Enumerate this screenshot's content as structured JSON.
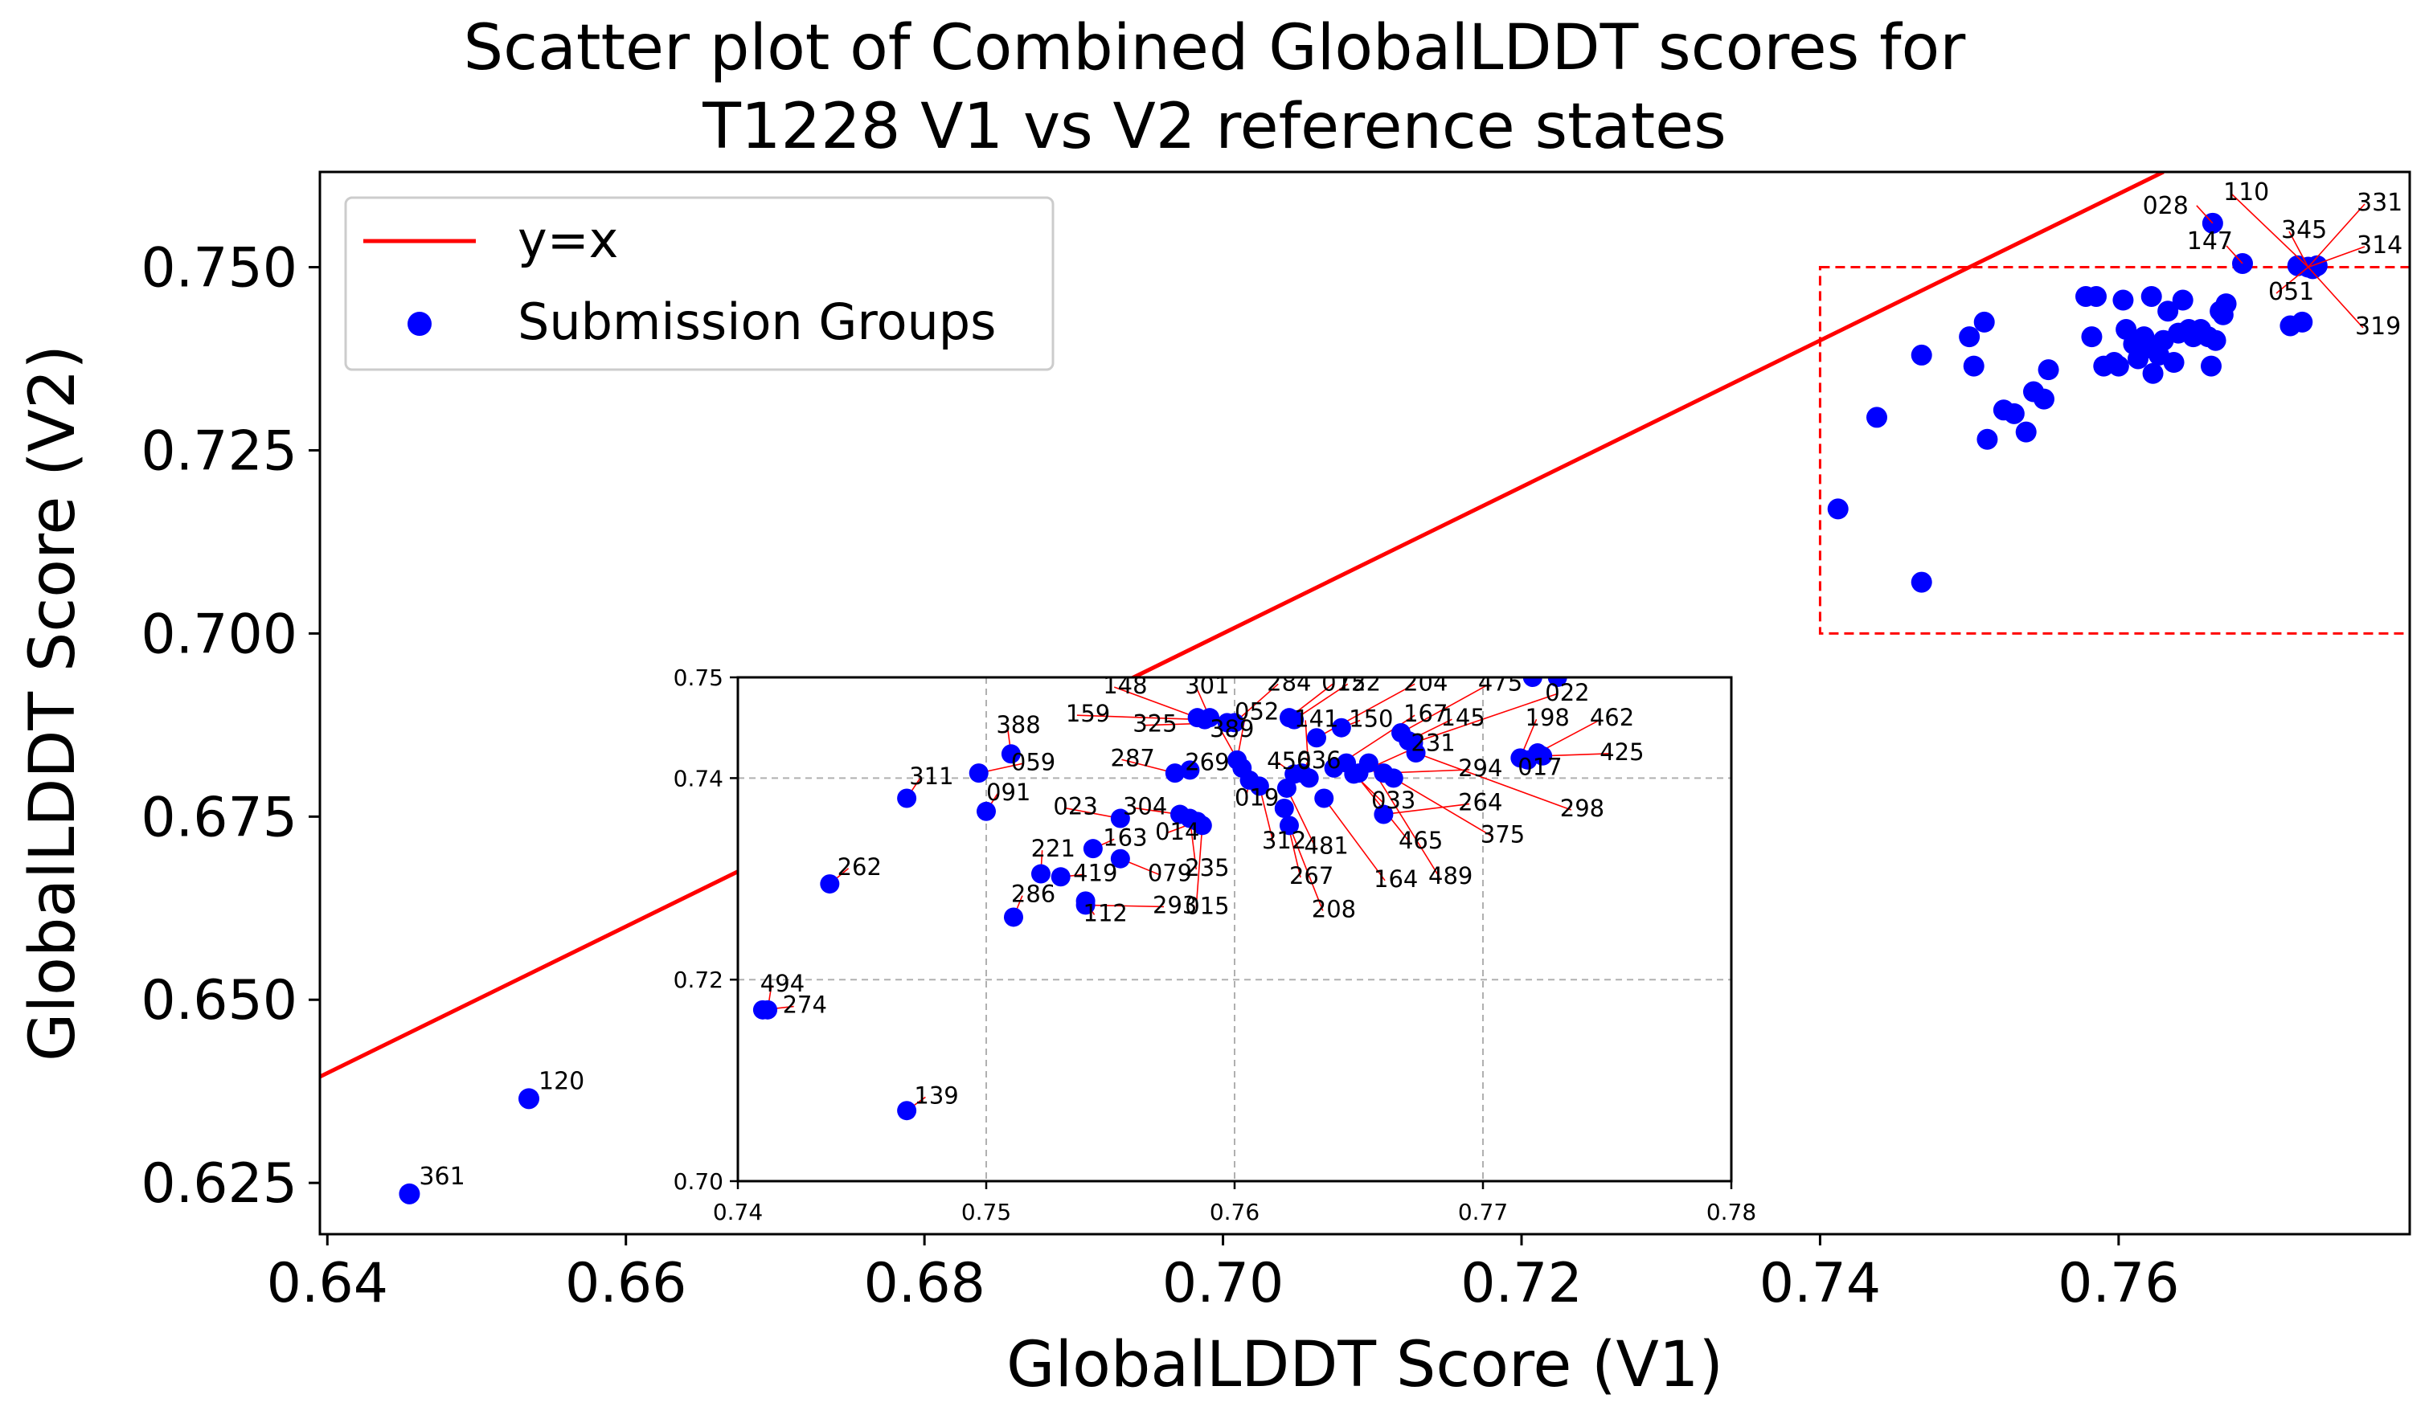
{
  "chart_data": {
    "type": "scatter",
    "title_lines": [
      "Scatter plot of Combined GlobalLDDT scores for",
      "T1228 V1 vs V2 reference states"
    ],
    "xlabel": "GlobalLDDT Score (V1)",
    "ylabel": "GlobalLDDT Score (V2)",
    "xlim": [
      0.6395,
      0.7795
    ],
    "ylim": [
      0.618,
      0.763
    ],
    "xticks": [
      "0.64",
      "0.66",
      "0.68",
      "0.70",
      "0.72",
      "0.74",
      "0.76"
    ],
    "yticks": [
      "0.625",
      "0.650",
      "0.675",
      "0.700",
      "0.725",
      "0.750"
    ],
    "grid": false,
    "legend": {
      "position": "top-left",
      "entries": [
        "y=x",
        "Submission Groups"
      ]
    },
    "colors": {
      "line": "#ff0000",
      "points": "#0000ff",
      "zoom_box": "#ff0000",
      "annotation_arrows": "#ff0000"
    },
    "reference_line": "y=x",
    "zoom_box": {
      "x": [
        0.74,
        0.7795
      ],
      "y": [
        0.7,
        0.75
      ]
    },
    "main_points": [
      {
        "x": 0.6455,
        "y": 0.6235,
        "label": "361"
      },
      {
        "x": 0.6535,
        "y": 0.6365,
        "label": "120"
      },
      {
        "x": 0.7412,
        "y": 0.717
      },
      {
        "x": 0.7438,
        "y": 0.7295
      },
      {
        "x": 0.7468,
        "y": 0.738
      },
      {
        "x": 0.7468,
        "y": 0.707
      },
      {
        "x": 0.75,
        "y": 0.7405
      },
      {
        "x": 0.7503,
        "y": 0.7365
      },
      {
        "x": 0.751,
        "y": 0.7425
      },
      {
        "x": 0.7512,
        "y": 0.7265
      },
      {
        "x": 0.7523,
        "y": 0.7305
      },
      {
        "x": 0.753,
        "y": 0.73
      },
      {
        "x": 0.7538,
        "y": 0.7275
      },
      {
        "x": 0.7543,
        "y": 0.733
      },
      {
        "x": 0.755,
        "y": 0.732
      },
      {
        "x": 0.7553,
        "y": 0.736
      },
      {
        "x": 0.7578,
        "y": 0.746
      },
      {
        "x": 0.7582,
        "y": 0.7405
      },
      {
        "x": 0.7585,
        "y": 0.746
      },
      {
        "x": 0.759,
        "y": 0.7365
      },
      {
        "x": 0.7597,
        "y": 0.737
      },
      {
        "x": 0.76,
        "y": 0.7365
      },
      {
        "x": 0.7603,
        "y": 0.7455
      },
      {
        "x": 0.7605,
        "y": 0.7415
      },
      {
        "x": 0.761,
        "y": 0.7395
      },
      {
        "x": 0.7613,
        "y": 0.7375
      },
      {
        "x": 0.7617,
        "y": 0.7405
      },
      {
        "x": 0.762,
        "y": 0.739
      },
      {
        "x": 0.7622,
        "y": 0.746
      },
      {
        "x": 0.7623,
        "y": 0.7355
      },
      {
        "x": 0.7627,
        "y": 0.738
      },
      {
        "x": 0.763,
        "y": 0.74
      },
      {
        "x": 0.7633,
        "y": 0.744
      },
      {
        "x": 0.7637,
        "y": 0.737
      },
      {
        "x": 0.764,
        "y": 0.741
      },
      {
        "x": 0.7643,
        "y": 0.7455
      },
      {
        "x": 0.7647,
        "y": 0.7415
      },
      {
        "x": 0.765,
        "y": 0.7405
      },
      {
        "x": 0.7655,
        "y": 0.7415
      },
      {
        "x": 0.766,
        "y": 0.7405
      },
      {
        "x": 0.7662,
        "y": 0.7365
      },
      {
        "x": 0.7665,
        "y": 0.74
      },
      {
        "x": 0.7668,
        "y": 0.744
      },
      {
        "x": 0.767,
        "y": 0.7435
      },
      {
        "x": 0.7672,
        "y": 0.745
      },
      {
        "x": 0.7663,
        "y": 0.756,
        "label": "028"
      },
      {
        "x": 0.7683,
        "y": 0.7505,
        "label": "147"
      },
      {
        "x": 0.7715,
        "y": 0.742
      },
      {
        "x": 0.7723,
        "y": 0.7425
      }
    ],
    "main_cluster_labels": [
      "110",
      "331",
      "345",
      "314",
      "051",
      "319"
    ],
    "inset": {
      "xlim": [
        0.74,
        0.78
      ],
      "ylim": [
        0.7,
        0.75
      ],
      "xticks": [
        "0.74",
        "0.75",
        "0.76",
        "0.77",
        "0.78"
      ],
      "yticks": [
        "0.70",
        "0.72",
        "0.74",
        "0.75"
      ],
      "grid": true,
      "points": [
        {
          "x": 0.7412,
          "y": 0.717,
          "label": "494",
          "lx": 0.7409,
          "ly": 0.7188
        },
        {
          "x": 0.741,
          "y": 0.717,
          "label": "274",
          "lx": 0.7418,
          "ly": 0.7167
        },
        {
          "x": 0.7468,
          "y": 0.707,
          "label": "139",
          "lx": 0.7471,
          "ly": 0.7077
        },
        {
          "x": 0.7437,
          "y": 0.7295,
          "label": "262",
          "lx": 0.744,
          "ly": 0.7304
        },
        {
          "x": 0.7468,
          "y": 0.738,
          "label": "311",
          "lx": 0.7469,
          "ly": 0.7394
        },
        {
          "x": 0.7497,
          "y": 0.7405,
          "label": "059",
          "lx": 0.751,
          "ly": 0.7408
        },
        {
          "x": 0.75,
          "y": 0.7367,
          "label": "091",
          "lx": 0.75,
          "ly": 0.7378
        },
        {
          "x": 0.751,
          "y": 0.7424,
          "label": "388",
          "lx": 0.7504,
          "ly": 0.7445
        },
        {
          "x": 0.7511,
          "y": 0.7262,
          "label": "286",
          "lx": 0.751,
          "ly": 0.7277
        },
        {
          "x": 0.7522,
          "y": 0.7305,
          "label": "221",
          "lx": 0.7518,
          "ly": 0.7322
        },
        {
          "x": 0.753,
          "y": 0.7302,
          "label": "419",
          "lx": 0.7535,
          "ly": 0.7298
        },
        {
          "x": 0.754,
          "y": 0.7278,
          "label": "112",
          "lx": 0.7539,
          "ly": 0.7258
        },
        {
          "x": 0.754,
          "y": 0.7274,
          "label": "293",
          "lx": 0.7567,
          "ly": 0.7266
        },
        {
          "x": 0.7543,
          "y": 0.733,
          "label": "163",
          "lx": 0.7547,
          "ly": 0.7333
        },
        {
          "x": 0.7554,
          "y": 0.732,
          "label": "079",
          "lx": 0.7565,
          "ly": 0.7298
        },
        {
          "x": 0.7554,
          "y": 0.736,
          "label": "023",
          "lx": 0.7527,
          "ly": 0.7364
        },
        {
          "x": 0.7578,
          "y": 0.7364,
          "label": "304",
          "lx": 0.7555,
          "ly": 0.7364
        },
        {
          "x": 0.7585,
          "y": 0.7357,
          "label": "014",
          "lx": 0.7568,
          "ly": 0.7339
        },
        {
          "x": 0.7582,
          "y": 0.736,
          "label": "235",
          "lx": 0.758,
          "ly": 0.7303
        },
        {
          "x": 0.7587,
          "y": 0.7353,
          "label": "015",
          "lx": 0.758,
          "ly": 0.7265
        },
        {
          "x": 0.7576,
          "y": 0.7405,
          "label": "287",
          "lx": 0.755,
          "ly": 0.7412
        },
        {
          "x": 0.7582,
          "y": 0.7408,
          "label": "269",
          "lx": 0.758,
          "ly": 0.7408
        },
        {
          "x": 0.7585,
          "y": 0.746,
          "label": "148",
          "lx": 0.7547,
          "ly": 0.7484
        },
        {
          "x": 0.759,
          "y": 0.746,
          "label": "301",
          "lx": 0.758,
          "ly": 0.7484
        },
        {
          "x": 0.7588,
          "y": 0.7458,
          "label": "159",
          "lx": 0.7532,
          "ly": 0.7456
        },
        {
          "x": 0.7597,
          "y": 0.7455,
          "label": "325",
          "lx": 0.7559,
          "ly": 0.7446
        },
        {
          "x": 0.76,
          "y": 0.7455,
          "label": "284",
          "lx": 0.7613,
          "ly": 0.7487
        },
        {
          "x": 0.7601,
          "y": 0.7418,
          "label": "052",
          "lx": 0.76,
          "ly": 0.7458
        },
        {
          "x": 0.7603,
          "y": 0.741,
          "label": "389",
          "lx": 0.759,
          "ly": 0.7441
        },
        {
          "x": 0.7606,
          "y": 0.7398,
          "label": "019",
          "lx": 0.76,
          "ly": 0.7373
        },
        {
          "x": 0.761,
          "y": 0.7392,
          "label": "312",
          "lx": 0.7611,
          "ly": 0.733
        },
        {
          "x": 0.762,
          "y": 0.737,
          "label": "267",
          "lx": 0.7622,
          "ly": 0.7295
        },
        {
          "x": 0.7621,
          "y": 0.739,
          "label": "481",
          "lx": 0.7628,
          "ly": 0.7325
        },
        {
          "x": 0.7622,
          "y": 0.7353,
          "label": "208",
          "lx": 0.7631,
          "ly": 0.7262
        },
        {
          "x": 0.7622,
          "y": 0.746,
          "label": "075",
          "lx": 0.7635,
          "ly": 0.7487
        },
        {
          "x": 0.7624,
          "y": 0.7458,
          "label": "122",
          "lx": 0.7641,
          "ly": 0.7487
        },
        {
          "x": 0.7624,
          "y": 0.7404,
          "label": "456",
          "lx": 0.7613,
          "ly": 0.7409
        },
        {
          "x": 0.7627,
          "y": 0.7405,
          "label": "036",
          "lx": 0.7625,
          "ly": 0.741
        },
        {
          "x": 0.763,
          "y": 0.74,
          "label": "141",
          "lx": 0.7624,
          "ly": 0.7451
        },
        {
          "x": 0.7633,
          "y": 0.744,
          "label": "204",
          "lx": 0.7668,
          "ly": 0.7487
        },
        {
          "x": 0.7636,
          "y": 0.738,
          "label": "164",
          "lx": 0.7656,
          "ly": 0.7292
        },
        {
          "x": 0.764,
          "y": 0.741,
          "label": "167",
          "lx": 0.7668,
          "ly": 0.7456
        },
        {
          "x": 0.7643,
          "y": 0.745,
          "label": "150",
          "lx": 0.7646,
          "ly": 0.7451
        },
        {
          "x": 0.7645,
          "y": 0.7415,
          "label": "465",
          "lx": 0.7666,
          "ly": 0.733
        },
        {
          "x": 0.7648,
          "y": 0.7404,
          "label": "033",
          "lx": 0.7655,
          "ly": 0.737
        },
        {
          "x": 0.765,
          "y": 0.7405,
          "label": "231",
          "lx": 0.7671,
          "ly": 0.7427
        },
        {
          "x": 0.7654,
          "y": 0.7415,
          "label": "489",
          "lx": 0.7678,
          "ly": 0.7295
        },
        {
          "x": 0.766,
          "y": 0.7405,
          "label": "294",
          "lx": 0.769,
          "ly": 0.7402
        },
        {
          "x": 0.766,
          "y": 0.7364,
          "label": "264",
          "lx": 0.769,
          "ly": 0.7368
        },
        {
          "x": 0.7664,
          "y": 0.74,
          "label": "375",
          "lx": 0.7699,
          "ly": 0.7336
        },
        {
          "x": 0.7667,
          "y": 0.7445,
          "label": "475",
          "lx": 0.7698,
          "ly": 0.7487
        },
        {
          "x": 0.767,
          "y": 0.7437,
          "label": "145",
          "lx": 0.7683,
          "ly": 0.7452
        },
        {
          "x": 0.7672,
          "y": 0.7435,
          "label": "022",
          "lx": 0.7725,
          "ly": 0.7477
        },
        {
          "x": 0.7673,
          "y": 0.7425,
          "label": "298",
          "lx": 0.7731,
          "ly": 0.7362
        },
        {
          "x": 0.7715,
          "y": 0.742,
          "label": "198",
          "lx": 0.7717,
          "ly": 0.7452
        },
        {
          "x": 0.7722,
          "y": 0.7425,
          "label": "462",
          "lx": 0.7743,
          "ly": 0.7452
        },
        {
          "x": 0.7724,
          "y": 0.7422,
          "label": "425",
          "lx": 0.7747,
          "ly": 0.7418
        },
        {
          "x": 0.7718,
          "y": 0.7418,
          "label": "017",
          "lx": 0.7714,
          "ly": 0.7403
        },
        {
          "x": 0.772,
          "y": 0.75
        },
        {
          "x": 0.773,
          "y": 0.75
        }
      ]
    }
  }
}
